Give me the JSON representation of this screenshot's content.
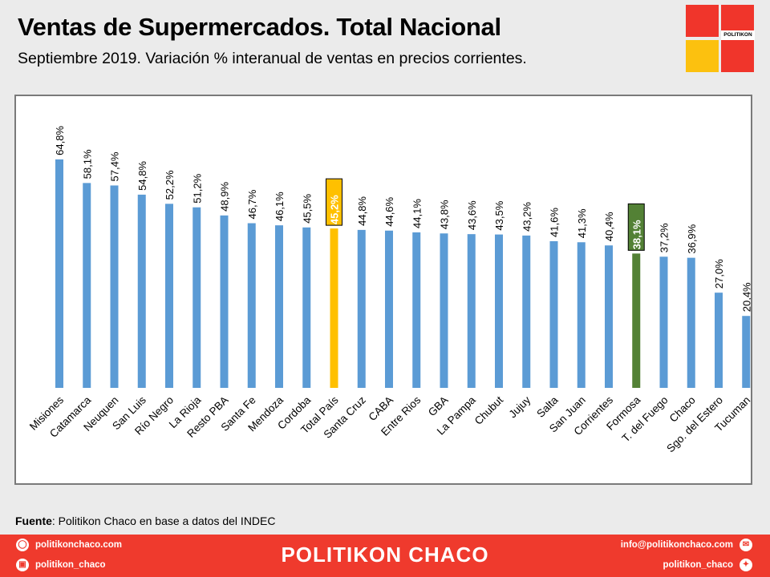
{
  "header": {
    "title": "Ventas de Supermercados. Total Nacional",
    "subtitle": "Septiembre 2019. Variación % interanual de ventas en precios corrientes."
  },
  "logo": {
    "text": "POLITIKON"
  },
  "source": {
    "label": "Fuente",
    "text": ": Politikon Chaco en base a datos del INDEC"
  },
  "footer": {
    "brand": "POLITIKON CHACO",
    "website": "politikonchaco.com",
    "instagram": "politikon_chaco",
    "email": "info@politikonchaco.com",
    "twitter": "politikon_chaco",
    "icons": {
      "website": "dribbble-icon",
      "instagram": "instagram-icon",
      "email": "mail-icon",
      "twitter": "twitter-icon"
    }
  },
  "colors": {
    "bar": "#5b9bd5",
    "total": "#ffc000",
    "highlight": "#538135",
    "brand": "#ef3a2d"
  },
  "chart_data": {
    "type": "bar",
    "categories": [
      "Misiones",
      "Catamarca",
      "Neuquen",
      "San Luis",
      "Río Negro",
      "La Rioja",
      "Resto PBA",
      "Santa Fe",
      "Mendoza",
      "Cordoba",
      "Total País",
      "Santa Cruz",
      "CABA",
      "Entre Rios",
      "GBA",
      "La Pampa",
      "Chubut",
      "Jujuy",
      "Salta",
      "San Juan",
      "Corrientes",
      "Formosa",
      "T. del Fuego",
      "Chaco",
      "Sgo. del Estero",
      "Tucuman"
    ],
    "values": [
      64.8,
      58.1,
      57.4,
      54.8,
      52.2,
      51.2,
      48.9,
      46.7,
      46.1,
      45.5,
      45.2,
      44.8,
      44.6,
      44.1,
      43.8,
      43.6,
      43.5,
      43.2,
      41.6,
      41.3,
      40.4,
      38.1,
      37.2,
      36.9,
      27.0,
      20.4
    ],
    "labels": [
      "64,8%",
      "58,1%",
      "57,4%",
      "54,8%",
      "52,2%",
      "51,2%",
      "48,9%",
      "46,7%",
      "46,1%",
      "45,5%",
      "45,2%",
      "44,8%",
      "44,6%",
      "44,1%",
      "43,8%",
      "43,6%",
      "43,5%",
      "43,2%",
      "41,6%",
      "41,3%",
      "40,4%",
      "38,1%",
      "37,2%",
      "36,9%",
      "27,0%",
      "20,4%"
    ],
    "highlight": {
      "Total País": "total",
      "Formosa": "highlight"
    },
    "ylim": [
      0,
      70
    ],
    "grid": false,
    "legend": "none",
    "title": "",
    "xlabel": "",
    "ylabel": ""
  }
}
